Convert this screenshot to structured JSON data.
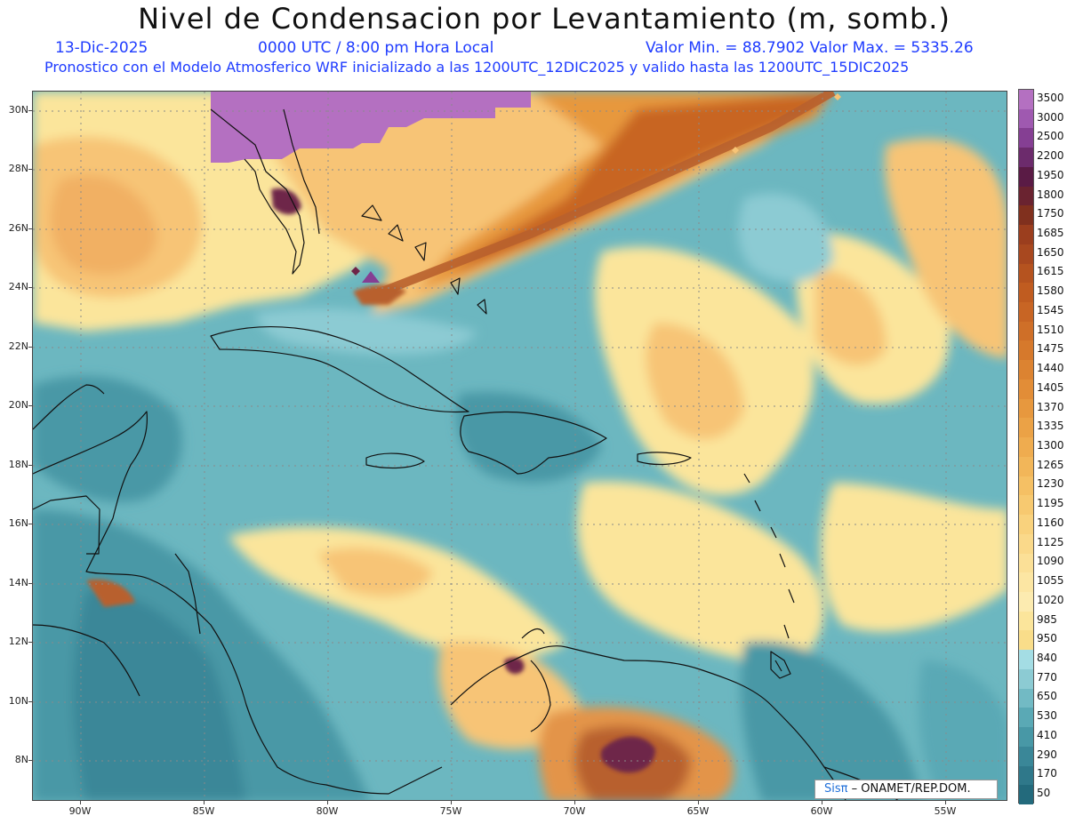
{
  "header": {
    "title": "Nivel de Condensacion por Levantamiento (m, somb.)",
    "date": "13-Dic-2025",
    "time": "0000 UTC / 8:00 pm Hora Local",
    "min_max": "Valor Min. = 88.7902  Valor Max. = 5335.26",
    "description": "Pronostico con el Modelo Atmosferico WRF inicializado a las 1200UTC_12DIC2025 y valido hasta las  1200UTC_15DIC2025"
  },
  "map": {
    "lat_labels": [
      "30N",
      "28N",
      "26N",
      "24N",
      "22N",
      "20N",
      "18N",
      "16N",
      "14N",
      "12N",
      "10N",
      "8N"
    ],
    "lon_labels": [
      "90W",
      "85W",
      "80W",
      "75W",
      "70W",
      "65W",
      "60W",
      "55W"
    ],
    "colors": {
      "deep_teal": "#2f7f8e",
      "teal": "#4a98a6",
      "light_teal": "#6cb7c0",
      "pale_cyan": "#a4dde4",
      "pale_yellow": "#fbe59b",
      "light_orange": "#f7c476",
      "orange": "#e39448",
      "dark_orange": "#b8612d",
      "maroon": "#6e2548",
      "purple": "#b470c1"
    }
  },
  "legend": {
    "labels": [
      "3500",
      "3000",
      "2500",
      "2200",
      "1950",
      "1800",
      "1750",
      "1685",
      "1650",
      "1615",
      "1580",
      "1545",
      "1510",
      "1475",
      "1440",
      "1405",
      "1370",
      "1335",
      "1300",
      "1265",
      "1230",
      "1195",
      "1160",
      "1125",
      "1090",
      "1055",
      "1020",
      "985",
      "950",
      "840",
      "770",
      "650",
      "530",
      "410",
      "290",
      "170",
      "50"
    ],
    "colors": [
      "#b470c1",
      "#9f59b0",
      "#853f93",
      "#6c2b6c",
      "#5a1b45",
      "#6a2330",
      "#80301e",
      "#9b3e1e",
      "#a8481f",
      "#b5531f",
      "#c05c20",
      "#c86524",
      "#cf6f28",
      "#d6792c",
      "#dc8331",
      "#e28d37",
      "#e7983e",
      "#eba246",
      "#efac4f",
      "#f2b659",
      "#f5c064",
      "#f7c970",
      "#f9d27d",
      "#fad98a",
      "#fbe097",
      "#fce6a3",
      "#fcebb0",
      "#fbe59b",
      "#f9dd8a",
      "#a4dde4",
      "#8ccbd3",
      "#72bac4",
      "#5aa9b5",
      "#4898a6",
      "#3a8798",
      "#2f788a",
      "#236a7c"
    ]
  },
  "credit": {
    "brand": "Sisπ",
    "text": " – ONAMET/REP.DOM."
  }
}
